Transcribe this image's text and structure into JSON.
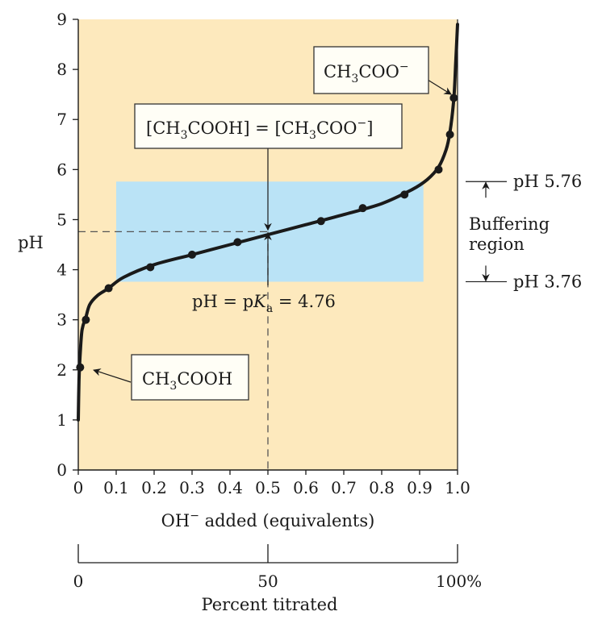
{
  "colors": {
    "plot_background": "#fde9bd",
    "buffer_region": "#bae3f6",
    "curve": "#1a1a1a",
    "guide": "#555555",
    "label_box": "#fffef6"
  },
  "chart_data": {
    "type": "line",
    "title": "",
    "xlabel_prefix": "OH",
    "xlabel_sup": "−",
    "xlabel_suffix": " added (equivalents)",
    "ylabel": "pH",
    "xlim": [
      0,
      1.0
    ],
    "ylim": [
      0,
      9
    ],
    "grid": false,
    "xticks": [
      "0",
      "0.1",
      "0.2",
      "0.3",
      "0.4",
      "0.5",
      "0.6",
      "0.7",
      "0.8",
      "0.9",
      "1.0"
    ],
    "yticks": [
      "0",
      "1",
      "2",
      "3",
      "4",
      "5",
      "6",
      "7",
      "8",
      "9"
    ],
    "series": [
      {
        "curve_x": [
          0.0,
          0.002,
          0.005,
          0.01,
          0.02,
          0.03,
          0.05,
          0.08,
          0.12,
          0.2,
          0.3,
          0.4,
          0.5,
          0.6,
          0.7,
          0.8,
          0.88,
          0.92,
          0.95,
          0.97,
          0.98,
          0.99,
          0.995,
          1.0
        ],
        "curve_y": [
          1.0,
          1.8,
          2.3,
          2.8,
          3.05,
          3.3,
          3.48,
          3.63,
          3.85,
          4.1,
          4.3,
          4.5,
          4.7,
          4.9,
          5.1,
          5.32,
          5.6,
          5.8,
          6.05,
          6.4,
          6.75,
          7.4,
          8.1,
          8.9
        ],
        "points_x": [
          0.005,
          0.02,
          0.08,
          0.19,
          0.3,
          0.42,
          0.5,
          0.64,
          0.75,
          0.86,
          0.95,
          0.98,
          0.99
        ],
        "points_y": [
          2.05,
          3.0,
          3.63,
          4.05,
          4.3,
          4.55,
          4.7,
          4.97,
          5.23,
          5.5,
          6.0,
          6.7,
          7.43
        ]
      }
    ],
    "buffer_region": {
      "x": [
        0.1,
        0.91
      ],
      "pH": [
        3.76,
        5.76
      ]
    },
    "pKa": 4.76,
    "half_equivalence_x": 0.5,
    "annotations": {
      "acid": {
        "main": "CH",
        "sub": "3",
        "rest": "COOH"
      },
      "base": {
        "main": "CH",
        "sub": "3",
        "rest": "COO",
        "sup": "−"
      },
      "equal": {
        "p1": "[CH",
        "s1": "3",
        "p2": "COOH] = [CH",
        "s2": "3",
        "p3": "COO",
        "sup": "−",
        "p4": "]"
      },
      "pka": {
        "a": "pH = p",
        "k": "K",
        "sub": "a",
        "b": " = 4.76"
      },
      "buffer_top": "pH 5.76",
      "buffer_bottom": "pH 3.76",
      "buffering_1": "Buffering",
      "buffering_2": "region"
    },
    "secondary_axis": {
      "label": "Percent titrated",
      "ticks": [
        "0",
        "50",
        "100%"
      ]
    }
  }
}
